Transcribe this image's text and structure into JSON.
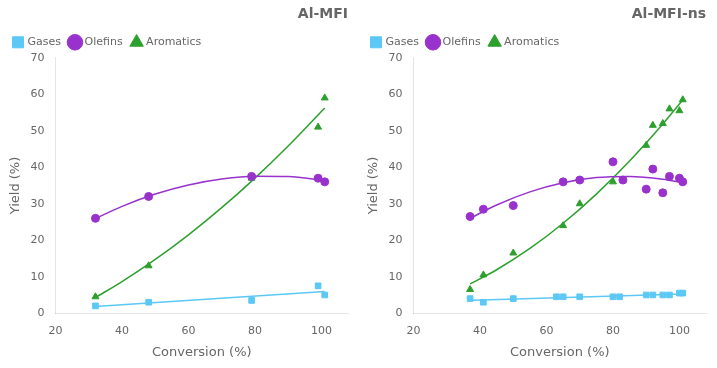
{
  "chart_data": [
    {
      "type": "scatter",
      "title": "Al-MFI",
      "x_label": "Conversion (%)",
      "y_label": "Yield (%)",
      "xlim": [
        20,
        108
      ],
      "ylim": [
        0,
        70
      ],
      "xticks": [
        20,
        40,
        60,
        80,
        100
      ],
      "yticks": [
        0,
        10,
        20,
        30,
        40,
        50,
        60,
        70
      ],
      "grid": false,
      "legend": "upper left",
      "series": [
        {
          "name": "Gases",
          "type": "scatter",
          "marker": "square",
          "color": "#5bc8f5",
          "x": [
            32,
            48,
            79,
            99,
            101
          ],
          "values": [
            2,
            3,
            3.5,
            7.5,
            5
          ]
        },
        {
          "type": "line",
          "color": "#5bc8f5",
          "x": [
            32,
            101
          ],
          "values": [
            1.85,
            5.93
          ]
        },
        {
          "name": "Olefins",
          "type": "scatter",
          "marker": "circle",
          "color": "#9932CC",
          "x": [
            32,
            48,
            79,
            99,
            101
          ],
          "values": [
            26,
            32,
            37.5,
            37,
            36
          ]
        },
        {
          "type": "line",
          "color": "#9932CC",
          "x": [
            32,
            40,
            50,
            60,
            70,
            80,
            90,
            101
          ],
          "values": [
            25.97,
            29.29,
            32.65,
            35.15,
            36.78,
            37.55,
            37.45,
            36.35
          ]
        },
        {
          "name": "Aromatics",
          "type": "scatter",
          "marker": "triangle",
          "color": "#2ca02c",
          "x": [
            32,
            48,
            79,
            99,
            101
          ],
          "values": [
            4.5,
            13,
            37,
            51,
            59
          ]
        },
        {
          "type": "line",
          "color": "#2ca02c",
          "x": [
            32,
            40,
            50,
            60,
            70,
            80,
            90,
            101
          ],
          "values": [
            4.3,
            8.67,
            14.74,
            21.49,
            28.92,
            37.03,
            45.81,
            56.25
          ]
        }
      ]
    },
    {
      "type": "scatter",
      "title": "Al-MFI-ns",
      "x_label": "Conversion (%)",
      "y_label": "Yield (%)",
      "xlim": [
        20,
        108
      ],
      "ylim": [
        0,
        70
      ],
      "xticks": [
        20,
        40,
        60,
        80,
        100
      ],
      "yticks": [
        0,
        10,
        20,
        30,
        40,
        50,
        60,
        70
      ],
      "grid": false,
      "legend": "upper left",
      "series": [
        {
          "name": "Gases",
          "type": "scatter",
          "marker": "square",
          "color": "#5bc8f5",
          "x": [
            37,
            41,
            50,
            63,
            65,
            70,
            80,
            82,
            90,
            92,
            95,
            97,
            100,
            101
          ],
          "values": [
            4,
            3,
            4,
            4.5,
            4.5,
            4.5,
            4.5,
            4.5,
            5,
            5,
            5,
            5,
            5.5,
            5.5
          ]
        },
        {
          "type": "line",
          "color": "#5bc8f5",
          "x": [
            37,
            101
          ],
          "values": [
            3.55,
            5.29
          ]
        },
        {
          "name": "Olefins",
          "type": "scatter",
          "marker": "circle",
          "color": "#9932CC",
          "x": [
            37,
            41,
            50,
            65,
            70,
            80,
            83,
            90,
            92,
            95,
            97,
            100,
            101
          ],
          "values": [
            26.5,
            28.5,
            29.5,
            36,
            36.5,
            41.5,
            36.5,
            34,
            39.5,
            33,
            37.5,
            37,
            36
          ]
        },
        {
          "type": "line",
          "color": "#9932CC",
          "x": [
            37,
            45,
            55,
            65,
            75,
            85,
            95,
            101
          ],
          "values": [
            26.0,
            29.67,
            33.26,
            35.77,
            37.18,
            37.5,
            36.72,
            35.73
          ]
        },
        {
          "name": "Aromatics",
          "type": "scatter",
          "marker": "triangle",
          "color": "#2ca02c",
          "x": [
            37,
            41,
            50,
            65,
            70,
            80,
            83,
            90,
            92,
            95,
            97,
            100,
            101
          ],
          "values": [
            6.5,
            10.5,
            16.5,
            24,
            30,
            36,
            36.5,
            46,
            51.5,
            52,
            56,
            55.5,
            58.5
          ]
        },
        {
          "type": "line",
          "color": "#2ca02c",
          "x": [
            37,
            45,
            55,
            65,
            75,
            85,
            95,
            101
          ],
          "values": [
            8.02,
            11.91,
            17.74,
            24.65,
            32.64,
            41.7,
            51.84,
            58.45
          ]
        }
      ]
    }
  ]
}
